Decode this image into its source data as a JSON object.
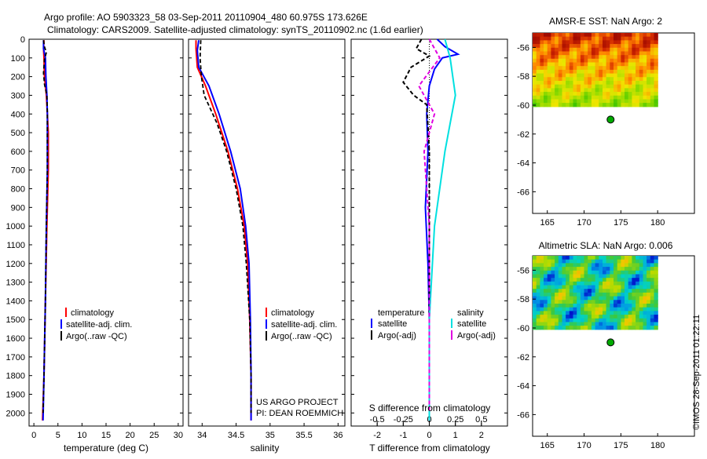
{
  "title_line1": "Argo profile: AO 5903323_58 03-Sep-2011 20110904_480 60.975S 173.626E",
  "title_line2": "Climatology: CARS2009. Satellite-adjusted climatology: synTS_20110902.nc (1.6d earlier)",
  "credit_line1": "US ARGO PROJECT",
  "credit_line2": "PI: DEAN ROEMMICH",
  "timestamp": "©IMOS 28-Sep-2011 01:22:11",
  "colors": {
    "climatology": "#ff0000",
    "satellite": "#0000ff",
    "argo": "#000000",
    "salinity_satellite": "#00e0e0",
    "salinity_argo": "#e000e0",
    "marker": "#00aa00"
  },
  "chart_data": [
    {
      "type": "line",
      "xlabel": "temperature (deg C)",
      "ylabel": "",
      "xlim": [
        -1,
        31
      ],
      "ylim": [
        2070,
        0
      ],
      "x_ticks": [
        "0",
        "5",
        "10",
        "15",
        "20",
        "25",
        "30"
      ],
      "y_ticks": [
        "0",
        "100",
        "200",
        "300",
        "400",
        "500",
        "600",
        "700",
        "800",
        "900",
        "1000",
        "1100",
        "1200",
        "1300",
        "1400",
        "1500",
        "1600",
        "1700",
        "1800",
        "1900",
        "2000"
      ],
      "legend": [
        "climatology",
        "satellite-adj. clim.",
        "Argo(..raw -QC)"
      ],
      "series": [
        {
          "name": "climatology",
          "values": [
            [
              2.1,
              5
            ],
            [
              2.0,
              50
            ],
            [
              2.1,
              100
            ],
            [
              2.2,
              200
            ],
            [
              2.6,
              300
            ],
            [
              2.8,
              400
            ],
            [
              3.0,
              500
            ],
            [
              3.0,
              700
            ],
            [
              2.7,
              1000
            ],
            [
              2.4,
              1400
            ],
            [
              2.1,
              1800
            ],
            [
              1.8,
              2040
            ]
          ]
        },
        {
          "name": "satellite-adj. clim.",
          "values": [
            [
              2.0,
              5
            ],
            [
              2.0,
              50
            ],
            [
              2.4,
              100
            ],
            [
              2.5,
              200
            ],
            [
              2.7,
              300
            ],
            [
              2.8,
              400
            ],
            [
              2.8,
              700
            ],
            [
              2.6,
              1000
            ],
            [
              2.4,
              1400
            ],
            [
              2.1,
              1800
            ],
            [
              1.9,
              2040
            ]
          ]
        },
        {
          "name": "Argo(..raw -QC)",
          "values": [
            [
              2.0,
              5
            ],
            [
              2.2,
              40
            ],
            [
              2.6,
              70
            ],
            [
              2.2,
              110
            ],
            [
              2.0,
              180
            ],
            [
              2.2,
              240
            ],
            [
              2.7,
              300
            ],
            [
              2.8,
              400
            ],
            [
              2.8,
              700
            ],
            [
              2.6,
              1000
            ],
            [
              2.4,
              1400
            ],
            [
              2.1,
              1800
            ],
            [
              1.9,
              2000
            ]
          ]
        }
      ]
    },
    {
      "type": "line",
      "xlabel": "salinity",
      "xlim": [
        33.8,
        36.1
      ],
      "ylim": [
        2070,
        0
      ],
      "x_ticks": [
        "34",
        "34.5",
        "35",
        "35.5",
        "36"
      ],
      "legend": [
        "climatology",
        "satellite-adj. clim.",
        "Argo(..raw -QC)"
      ],
      "series": [
        {
          "name": "climatology",
          "values": [
            [
              33.91,
              5
            ],
            [
              33.91,
              50
            ],
            [
              33.93,
              150
            ],
            [
              34.05,
              250
            ],
            [
              34.2,
              400
            ],
            [
              34.38,
              600
            ],
            [
              34.52,
              800
            ],
            [
              34.62,
              1000
            ],
            [
              34.67,
              1200
            ],
            [
              34.7,
              1500
            ],
            [
              34.72,
              1800
            ],
            [
              34.72,
              2040
            ]
          ]
        },
        {
          "name": "satellite-adj. clim.",
          "values": [
            [
              33.95,
              5
            ],
            [
              33.93,
              60
            ],
            [
              33.95,
              150
            ],
            [
              34.1,
              250
            ],
            [
              34.25,
              400
            ],
            [
              34.42,
              600
            ],
            [
              34.56,
              800
            ],
            [
              34.64,
              1000
            ],
            [
              34.69,
              1200
            ],
            [
              34.71,
              1500
            ],
            [
              34.72,
              1800
            ],
            [
              34.72,
              2040
            ]
          ]
        },
        {
          "name": "Argo(..raw -QC)",
          "values": [
            [
              33.98,
              5
            ],
            [
              33.97,
              100
            ],
            [
              33.99,
              200
            ],
            [
              34.03,
              300
            ],
            [
              34.22,
              450
            ],
            [
              34.36,
              600
            ],
            [
              34.5,
              800
            ],
            [
              34.6,
              1000
            ],
            [
              34.65,
              1200
            ],
            [
              34.7,
              1500
            ],
            [
              34.72,
              1800
            ],
            [
              34.72,
              2000
            ]
          ]
        }
      ]
    },
    {
      "type": "line",
      "xlabel": "T difference from climatology",
      "xlabel_top": "S difference from climatology",
      "xlim": [
        -3,
        3
      ],
      "ylim": [
        2070,
        0
      ],
      "x_ticks": [
        "-2",
        "-1",
        "0",
        "1",
        "2"
      ],
      "x2_ticks": [
        "-0.5",
        "-0.25",
        "0",
        "0.25",
        "0.5"
      ],
      "legend_temperature_title": "temperature",
      "legend_salinity_title": "salinity",
      "legend_entries": [
        "satellite",
        "Argo(-adj)",
        "satellite",
        "Argo(-adj)"
      ],
      "series": [
        {
          "name": "temperature satellite",
          "values": [
            [
              0.3,
              0
            ],
            [
              0.6,
              40
            ],
            [
              1.1,
              80
            ],
            [
              0.5,
              100
            ],
            [
              0.2,
              160
            ],
            [
              0.0,
              250
            ],
            [
              -0.1,
              400
            ],
            [
              -0.05,
              600
            ],
            [
              -0.15,
              900
            ],
            [
              -0.05,
              1200
            ],
            [
              0.0,
              1500
            ],
            [
              0.0,
              2040
            ]
          ]
        },
        {
          "name": "temperature Argo(-adj)",
          "values": [
            [
              -0.3,
              0
            ],
            [
              -0.5,
              50
            ],
            [
              0.0,
              90
            ],
            [
              -0.7,
              150
            ],
            [
              -1.0,
              230
            ],
            [
              -0.6,
              300
            ],
            [
              -0.1,
              350
            ],
            [
              0.0,
              600
            ],
            [
              0.0,
              2000
            ]
          ]
        },
        {
          "name": "salinity satellite",
          "values": [
            [
              0.15,
              0
            ],
            [
              0.2,
              100
            ],
            [
              0.25,
              300
            ],
            [
              0.15,
              600
            ],
            [
              0.05,
              1000
            ],
            [
              0.0,
              1500
            ],
            [
              0.0,
              2040
            ]
          ]
        },
        {
          "name": "salinity Argo(-adj)",
          "values": [
            [
              0.0,
              0
            ],
            [
              0.1,
              100
            ],
            [
              -0.1,
              250
            ],
            [
              0.05,
              400
            ],
            [
              -0.05,
              600
            ],
            [
              0.0,
              1000
            ],
            [
              0.0,
              2000
            ]
          ]
        }
      ]
    },
    {
      "type": "heatmap",
      "title": "AMSR-E SST: NaN Argo: 2",
      "xlim": [
        163,
        185
      ],
      "ylim": [
        -67.5,
        -55
      ],
      "x_ticks": [
        "165",
        "170",
        "175",
        "180"
      ],
      "y_ticks": [
        "-56",
        "-58",
        "-60",
        "-62",
        "-64",
        "-66"
      ],
      "marker": [
        173.6,
        -61.0
      ]
    },
    {
      "type": "heatmap",
      "title": "Altimetric SLA: NaN Argo: 0.006",
      "xlim": [
        163,
        185
      ],
      "ylim": [
        -67.5,
        -55
      ],
      "x_ticks": [
        "165",
        "170",
        "175",
        "180"
      ],
      "y_ticks": [
        "-56",
        "-58",
        "-60",
        "-62",
        "-64",
        "-66"
      ],
      "marker": [
        173.6,
        -61.0
      ]
    }
  ]
}
